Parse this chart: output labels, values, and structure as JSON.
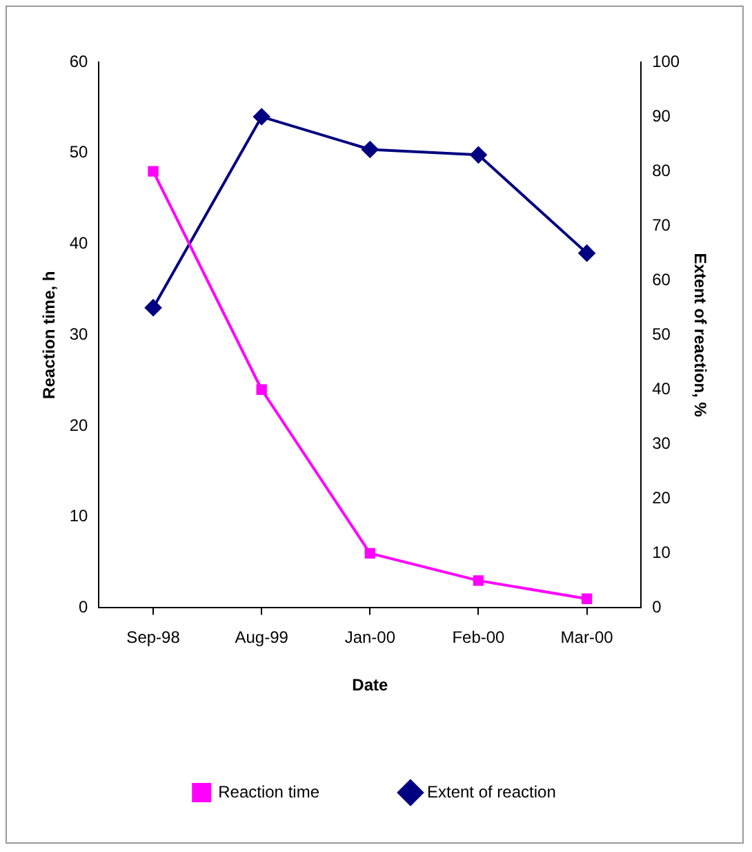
{
  "chart_data": {
    "type": "line",
    "xlabel": "Date",
    "ylabel": "Reaction time, h",
    "y2label": "Extent of reaction, %",
    "categories": [
      "Sep-98",
      "Aug-99",
      "Jan-00",
      "Feb-00",
      "Mar-00"
    ],
    "series": [
      {
        "name": "Reaction time",
        "color": "#ff00ff",
        "marker": "square",
        "values": [
          48,
          24,
          6,
          3,
          1
        ]
      },
      {
        "name": "Extent of reaction",
        "color": "#000080",
        "marker": "diamond",
        "axis": "y2",
        "values": [
          55,
          90,
          84,
          83,
          65
        ]
      }
    ],
    "ylim": [
      0,
      60
    ],
    "yticks": [
      0,
      10,
      20,
      30,
      40,
      50,
      60
    ],
    "y2lim": [
      0,
      100
    ],
    "y2ticks": [
      0,
      10,
      20,
      30,
      40,
      50,
      60,
      70,
      80,
      90,
      100
    ],
    "grid": false,
    "legend": "bottom",
    "line_style": "solid"
  }
}
